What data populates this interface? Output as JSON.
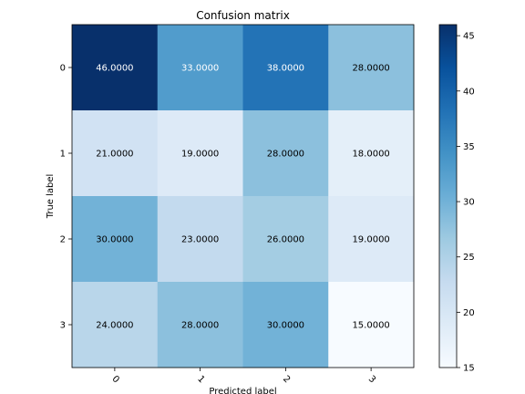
{
  "chart_data": {
    "type": "heatmap",
    "title": "Confusion matrix",
    "xlabel": "Predicted label",
    "ylabel": "True label",
    "x_categories": [
      "0",
      "1",
      "2",
      "3"
    ],
    "y_categories": [
      "0",
      "1",
      "2",
      "3"
    ],
    "values": [
      [
        46,
        33,
        38,
        28
      ],
      [
        21,
        19,
        28,
        18
      ],
      [
        30,
        23,
        26,
        19
      ],
      [
        24,
        28,
        30,
        15
      ]
    ],
    "cell_labels": [
      [
        "46.0000",
        "33.0000",
        "38.0000",
        "28.0000"
      ],
      [
        "21.0000",
        "19.0000",
        "28.0000",
        "18.0000"
      ],
      [
        "30.0000",
        "23.0000",
        "26.0000",
        "19.0000"
      ],
      [
        "24.0000",
        "28.0000",
        "30.0000",
        "15.0000"
      ]
    ],
    "colormap": "Blues",
    "colorbar": {
      "range": [
        15,
        46
      ],
      "ticks": [
        15,
        20,
        25,
        30,
        35,
        40,
        45
      ]
    },
    "text_colors": {
      "dark_cell": "#ffffff",
      "light_cell": "#000000"
    },
    "grid": false
  }
}
